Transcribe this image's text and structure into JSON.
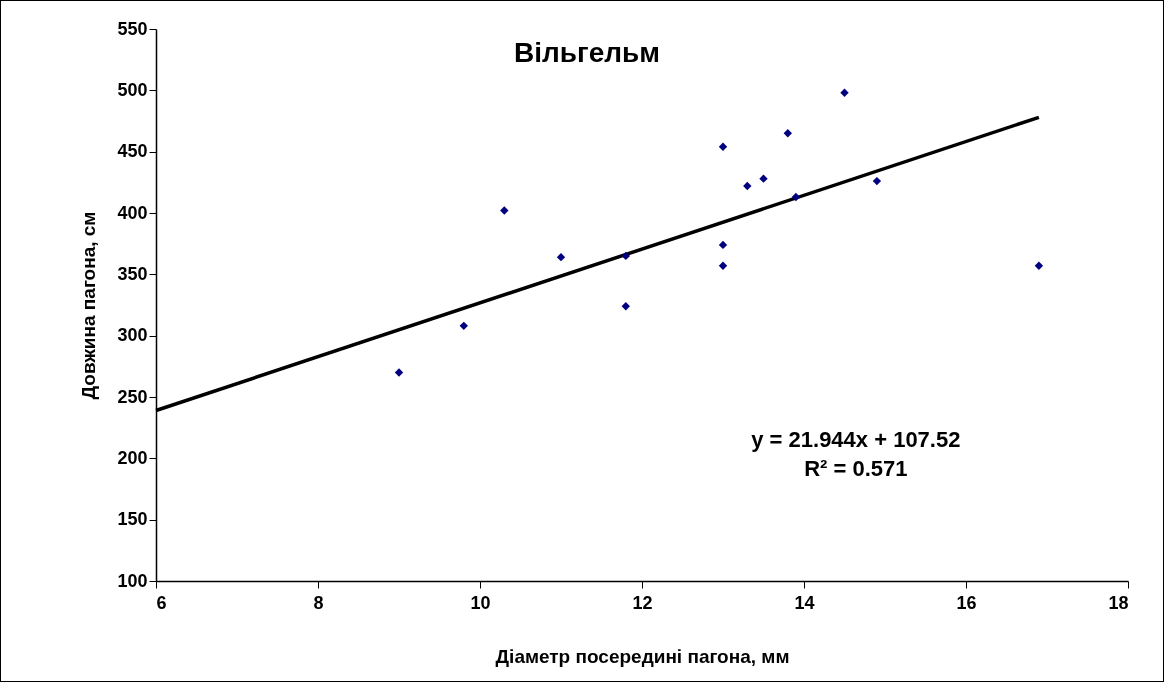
{
  "chart_data": {
    "type": "scatter",
    "title": "Вільгельм",
    "xlabel": "Діаметр посередині пагона, мм",
    "ylabel": "Довжина пагона, см",
    "xlim": [
      6,
      18
    ],
    "xticks": [
      6,
      8,
      10,
      12,
      14,
      16,
      18
    ],
    "ylim": [
      100,
      550
    ],
    "yticks": [
      100,
      150,
      200,
      250,
      300,
      350,
      400,
      450,
      500,
      550
    ],
    "series": [
      {
        "marker": "diamond",
        "color": "#000080",
        "x": [
          9.0,
          9.8,
          10.3,
          11.0,
          11.8,
          11.8,
          13.0,
          13.0,
          13.0,
          13.3,
          13.5,
          13.8,
          13.9,
          14.5,
          14.9,
          16.9
        ],
        "values": [
          270,
          308,
          402,
          364,
          365,
          324,
          454,
          374,
          357,
          422,
          428,
          465,
          413,
          498,
          426,
          357
        ]
      },
      {
        "type": "line",
        "color": "#000000",
        "x": [
          6,
          16.9
        ],
        "values": [
          239,
          478
        ]
      }
    ],
    "annotations": [
      "y = 21.944x + 107.52",
      "R² = 0.571"
    ]
  }
}
